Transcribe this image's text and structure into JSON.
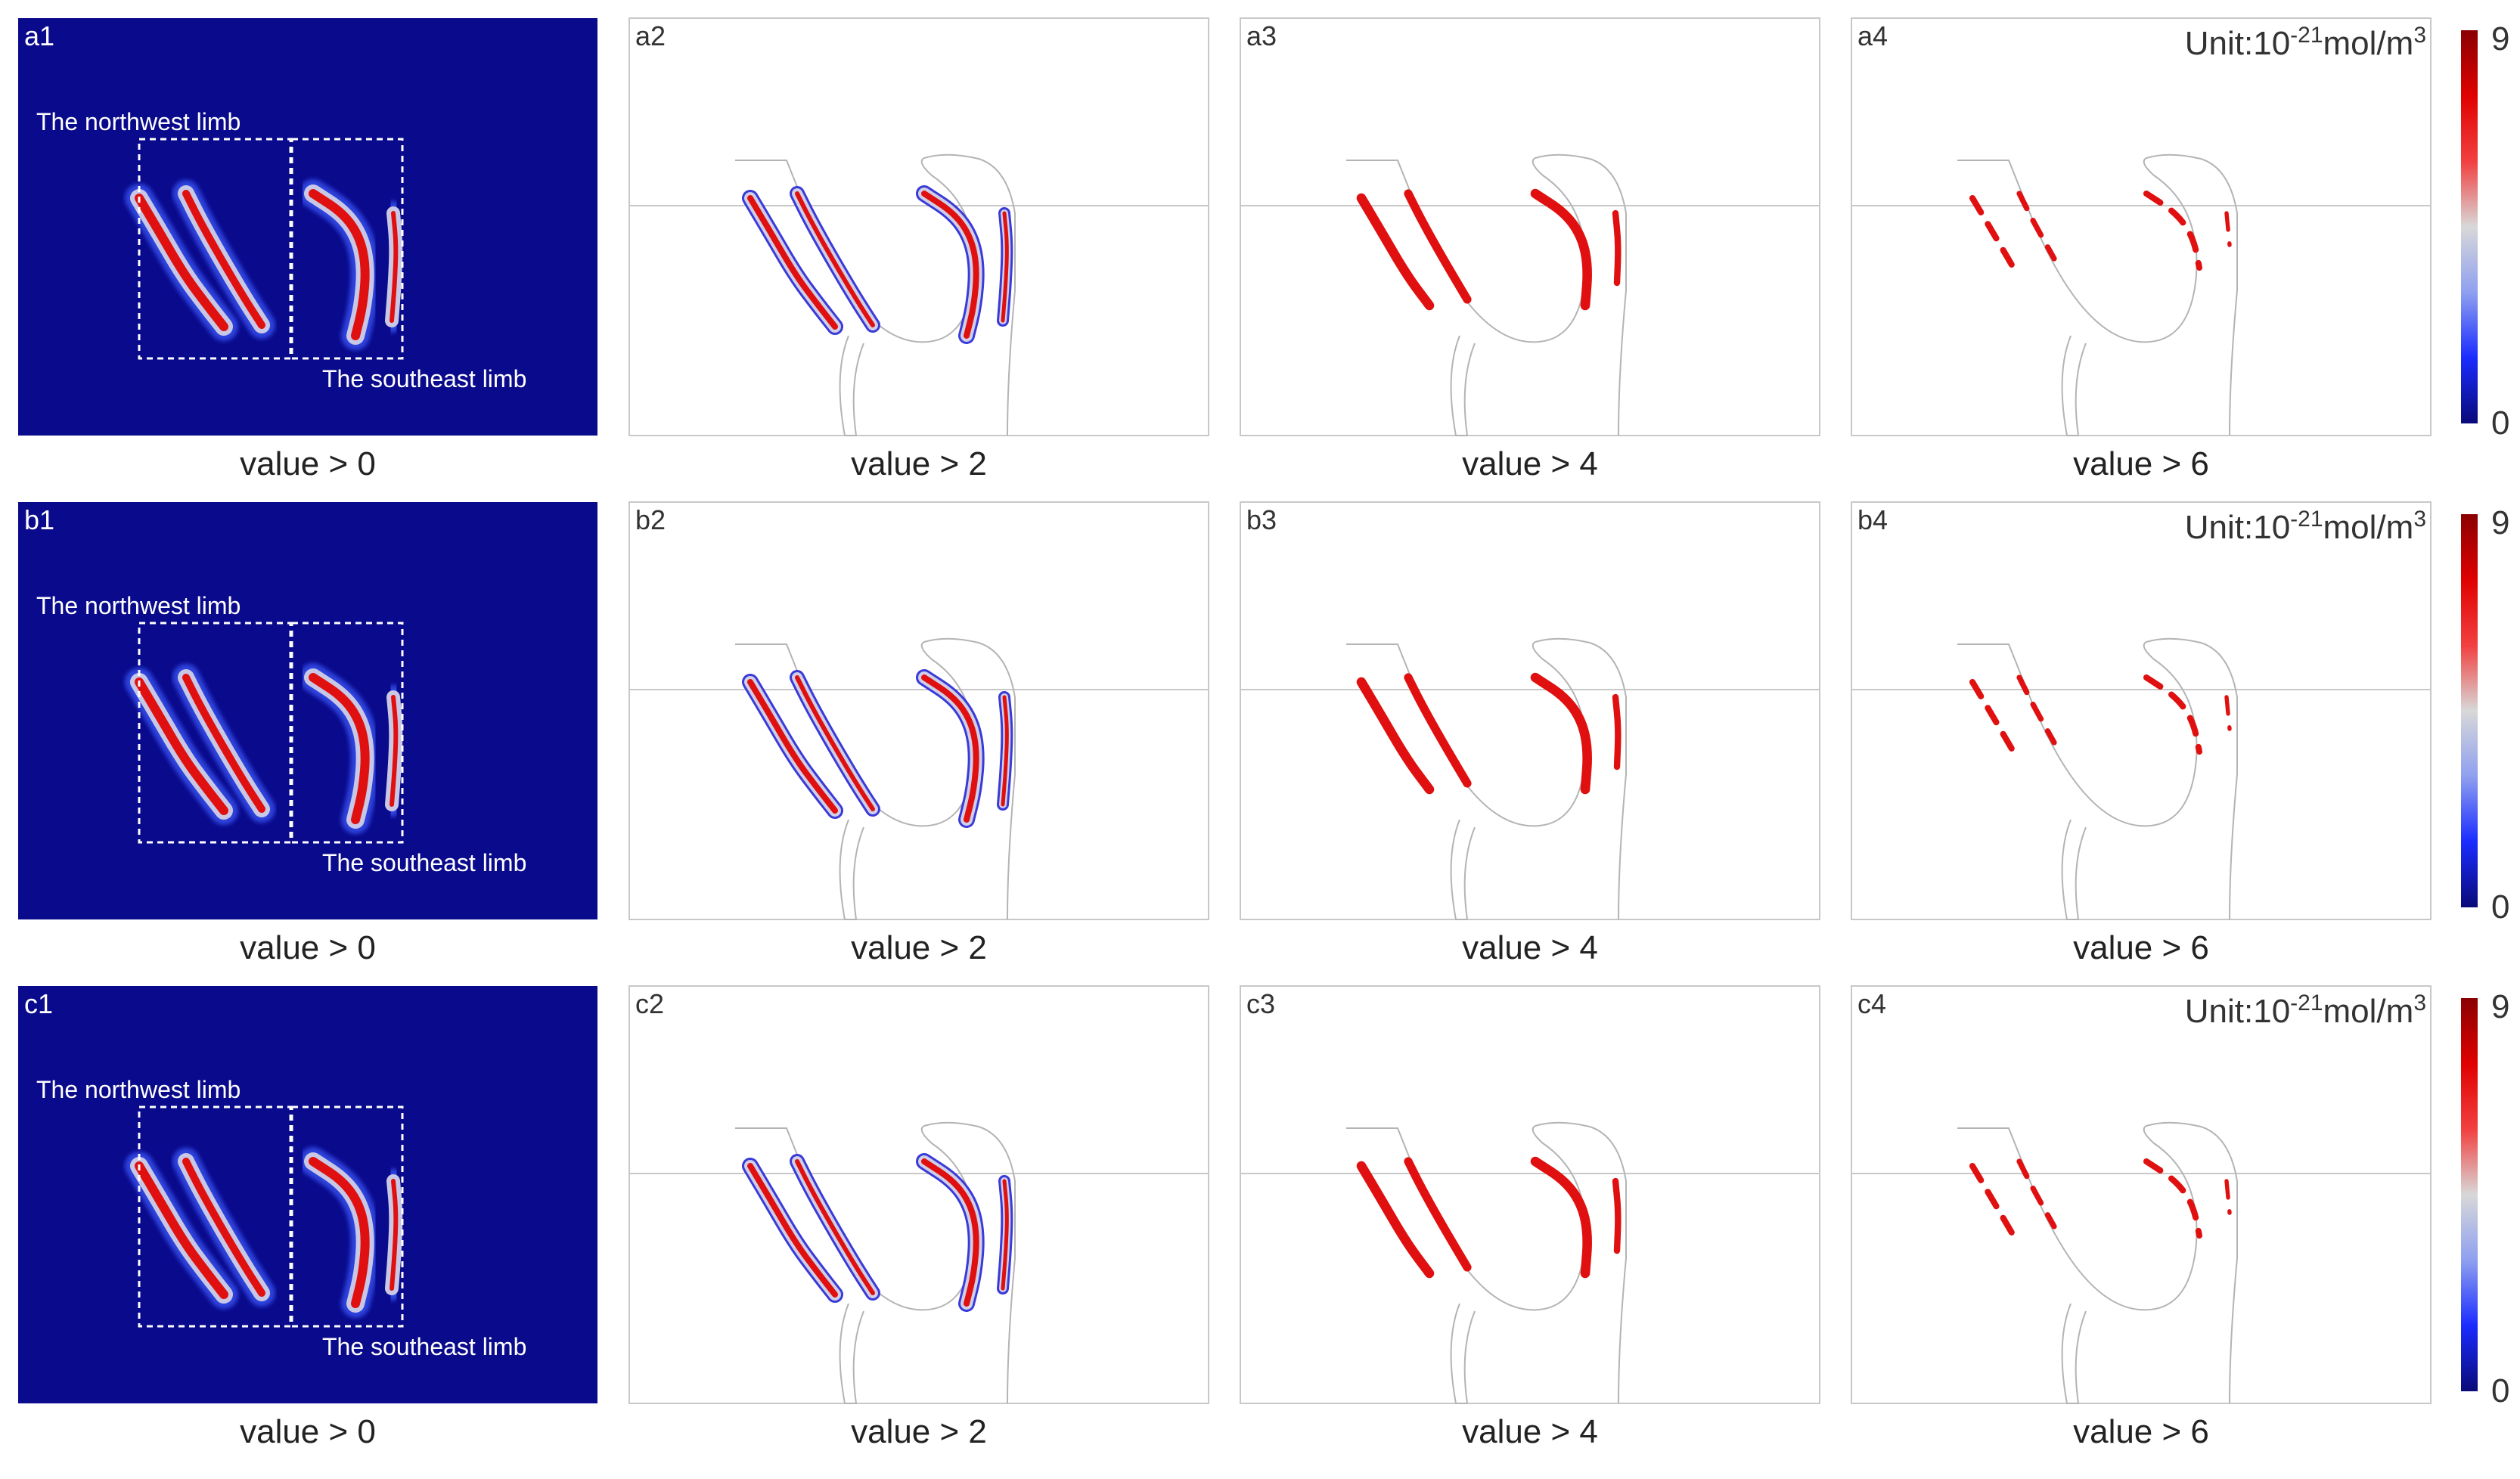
{
  "rows": [
    {
      "id": "a",
      "panels": [
        {
          "label": "a1",
          "kind": "full",
          "caption": "value > 0",
          "box_labels": {
            "northwest": "The northwest limb",
            "southeast": "The southeast limb"
          }
        },
        {
          "label": "a2",
          "kind": "threshold",
          "threshold": 2,
          "caption": "value > 2"
        },
        {
          "label": "a3",
          "kind": "threshold",
          "threshold": 4,
          "caption": "value > 4"
        },
        {
          "label": "a4",
          "kind": "threshold",
          "threshold": 6,
          "caption": "value > 6"
        }
      ]
    },
    {
      "id": "b",
      "panels": [
        {
          "label": "b1",
          "kind": "full",
          "caption": "value > 0",
          "box_labels": {
            "northwest": "The northwest limb",
            "southeast": "The southeast limb"
          }
        },
        {
          "label": "b2",
          "kind": "threshold",
          "threshold": 2,
          "caption": "value > 2"
        },
        {
          "label": "b3",
          "kind": "threshold",
          "threshold": 4,
          "caption": "value > 4"
        },
        {
          "label": "b4",
          "kind": "threshold",
          "threshold": 6,
          "caption": "value > 6"
        }
      ]
    },
    {
      "id": "c",
      "panels": [
        {
          "label": "c1",
          "kind": "full",
          "caption": "value > 0",
          "box_labels": {
            "northwest": "The northwest limb",
            "southeast": "The southeast limb"
          }
        },
        {
          "label": "c2",
          "kind": "threshold",
          "threshold": 2,
          "caption": "value > 2"
        },
        {
          "label": "c3",
          "kind": "threshold",
          "threshold": 4,
          "caption": "value > 4"
        },
        {
          "label": "c4",
          "kind": "threshold",
          "threshold": 6,
          "caption": "value > 6"
        }
      ]
    }
  ],
  "unit": {
    "prefix": "Unit:10",
    "exponent": "-21",
    "suffix": "mol/m",
    "power": "3"
  },
  "colorbar": {
    "max_label": "9",
    "min_label": "0",
    "min": 0,
    "max": 9,
    "colors": [
      "#0a0a78",
      "#1a2cff",
      "#8fa0f0",
      "#d8d8d8",
      "#f24040",
      "#e00000",
      "#8a0000"
    ]
  },
  "colors": {
    "background_full": "#0a0a8c",
    "dashed_box": "#ffffff",
    "outline": "#b4b4b4",
    "low": "#3a3ad8",
    "high": "#e01010"
  }
}
